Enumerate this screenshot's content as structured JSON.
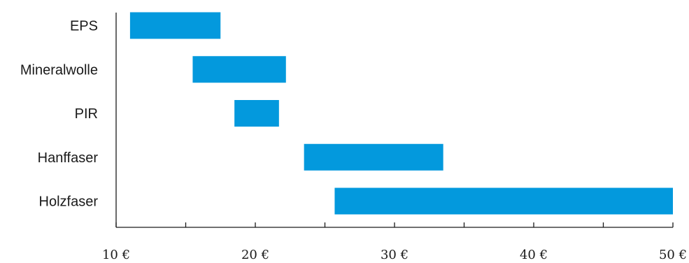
{
  "chart_data": {
    "type": "bar",
    "orientation": "horizontal",
    "subtype": "floating-range",
    "title": "",
    "xlabel": "",
    "ylabel": "",
    "categories": [
      "EPS",
      "Mineralwolle",
      "PIR",
      "Hanffaser",
      "Holzfaser"
    ],
    "ranges": [
      [
        11,
        17.5
      ],
      [
        15.5,
        22.2
      ],
      [
        18.5,
        21.7
      ],
      [
        23.5,
        33.5
      ],
      [
        25.7,
        50
      ]
    ],
    "xlim": [
      10,
      50
    ],
    "x_ticks": [
      10,
      15,
      20,
      25,
      30,
      35,
      40,
      45,
      50
    ],
    "x_tick_labels": [
      {
        "value": 10,
        "label": "10 €"
      },
      {
        "value": 20,
        "label": "20 €"
      },
      {
        "value": 30,
        "label": "30 €"
      },
      {
        "value": 40,
        "label": "40 €"
      },
      {
        "value": 50,
        "label": "50 €"
      }
    ],
    "grid": false,
    "legend": "none",
    "colors": {
      "bar": "#0399DD",
      "axis": "#1a1a1a",
      "text": "#1a1a1a"
    }
  }
}
